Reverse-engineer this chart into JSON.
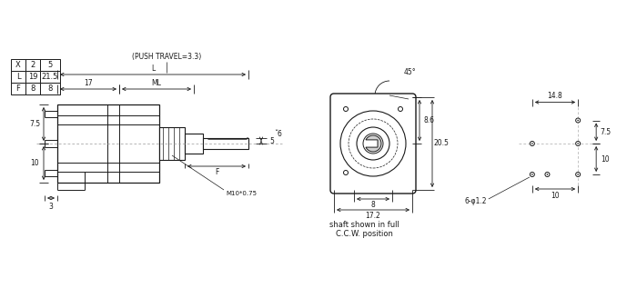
{
  "bg_color": "#ffffff",
  "line_color": "#1a1a1a",
  "table_data": [
    [
      "X",
      "2",
      "5"
    ],
    [
      "L",
      "19",
      "21.5"
    ],
    [
      "F",
      "8",
      "8"
    ]
  ],
  "annotations": {
    "push_travel": "(PUSH TRAVEL=3.3)",
    "L_label": "L",
    "ML_label": "ML",
    "dim_17": "17",
    "dim_7_5_top": "7.5",
    "dim_10": "10",
    "dim_3": "3",
    "dim_5": "5",
    "dim_phi6": "̆6",
    "dim_F": "F",
    "thread": "M10*0.75",
    "dim_8_6": "8.6",
    "dim_20_5": "20.5",
    "dim_8": "8",
    "dim_17_2": "17.2",
    "dim_45": "45°",
    "dim_14_8": "14.8",
    "dim_7_5_right": "7.5",
    "dim_10_right": "10",
    "dim_10_horiz": "10",
    "dim_phi1_2": "6-φ1.2",
    "shaft_text1": "shaft shown in full",
    "shaft_text2": "C.C.W. position"
  }
}
